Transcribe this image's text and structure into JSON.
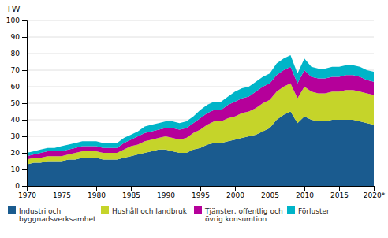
{
  "chart_data": {
    "type": "area",
    "stacked": true,
    "title": "TW",
    "x": [
      1970,
      1971,
      1972,
      1973,
      1974,
      1975,
      1976,
      1977,
      1978,
      1979,
      1980,
      1981,
      1982,
      1983,
      1984,
      1985,
      1986,
      1987,
      1988,
      1989,
      1990,
      1991,
      1992,
      1993,
      1994,
      1995,
      1996,
      1997,
      1998,
      1999,
      2000,
      2001,
      2002,
      2003,
      2004,
      2005,
      2006,
      2007,
      2008,
      2009,
      2010,
      2011,
      2012,
      2013,
      2014,
      2015,
      2016,
      2017,
      2018,
      2019,
      2020
    ],
    "series": [
      {
        "name": "Industri och\nbyggnadsverksamhet",
        "color": "#1a5b8f",
        "values": [
          13,
          14,
          14,
          15,
          15,
          15,
          16,
          16,
          17,
          17,
          17,
          16,
          16,
          16,
          17,
          18,
          19,
          20,
          21,
          22,
          22,
          21,
          20,
          20,
          22,
          23,
          25,
          26,
          26,
          27,
          28,
          29,
          30,
          31,
          33,
          35,
          40,
          43,
          45,
          38,
          42,
          40,
          39,
          39,
          40,
          40,
          40,
          40,
          39,
          38,
          37
        ]
      },
      {
        "name": "Hushåll och landbruk",
        "color": "#c5d42a",
        "values": [
          3,
          3,
          3,
          3,
          3,
          3,
          3,
          4,
          4,
          4,
          4,
          4,
          4,
          4,
          5,
          6,
          6,
          7,
          7,
          7,
          8,
          8,
          8,
          9,
          10,
          11,
          12,
          13,
          13,
          14,
          14,
          15,
          15,
          16,
          17,
          17,
          17,
          17,
          17,
          15,
          18,
          17,
          17,
          17,
          17,
          17,
          18,
          18,
          18,
          18,
          18
        ]
      },
      {
        "name": "Tjänster, offentlig och\növrig konsumtion",
        "color": "#b5009a",
        "values": [
          2,
          2,
          3,
          3,
          3,
          3,
          3,
          3,
          3,
          3,
          3,
          3,
          3,
          3,
          4,
          4,
          5,
          5,
          5,
          5,
          5,
          6,
          6,
          6,
          6,
          7,
          7,
          7,
          7,
          8,
          9,
          9,
          9,
          10,
          10,
          10,
          10,
          10,
          10,
          9,
          10,
          9,
          9,
          9,
          9,
          9,
          9,
          9,
          9,
          8,
          8
        ]
      },
      {
        "name": "Förluster",
        "color": "#00b4c8",
        "values": [
          2,
          2,
          2,
          2,
          2,
          3,
          3,
          3,
          3,
          3,
          3,
          3,
          3,
          3,
          3,
          3,
          3,
          4,
          4,
          4,
          4,
          4,
          4,
          4,
          4,
          5,
          5,
          5,
          5,
          5,
          6,
          6,
          6,
          6,
          6,
          6,
          7,
          7,
          7,
          6,
          7,
          6,
          6,
          6,
          6,
          6,
          6,
          6,
          6,
          6,
          6
        ]
      }
    ],
    "xlim": [
      1970,
      2020
    ],
    "xticks": [
      1970,
      1975,
      1980,
      1985,
      1990,
      1995,
      2000,
      2005,
      2010,
      2015,
      {
        "value": 2020,
        "label": "2020*"
      }
    ],
    "ylim": [
      0,
      100
    ],
    "yticks": [
      0,
      10,
      20,
      30,
      40,
      50,
      60,
      70,
      80,
      90,
      100
    ],
    "grid": true,
    "legend": "bottom"
  }
}
